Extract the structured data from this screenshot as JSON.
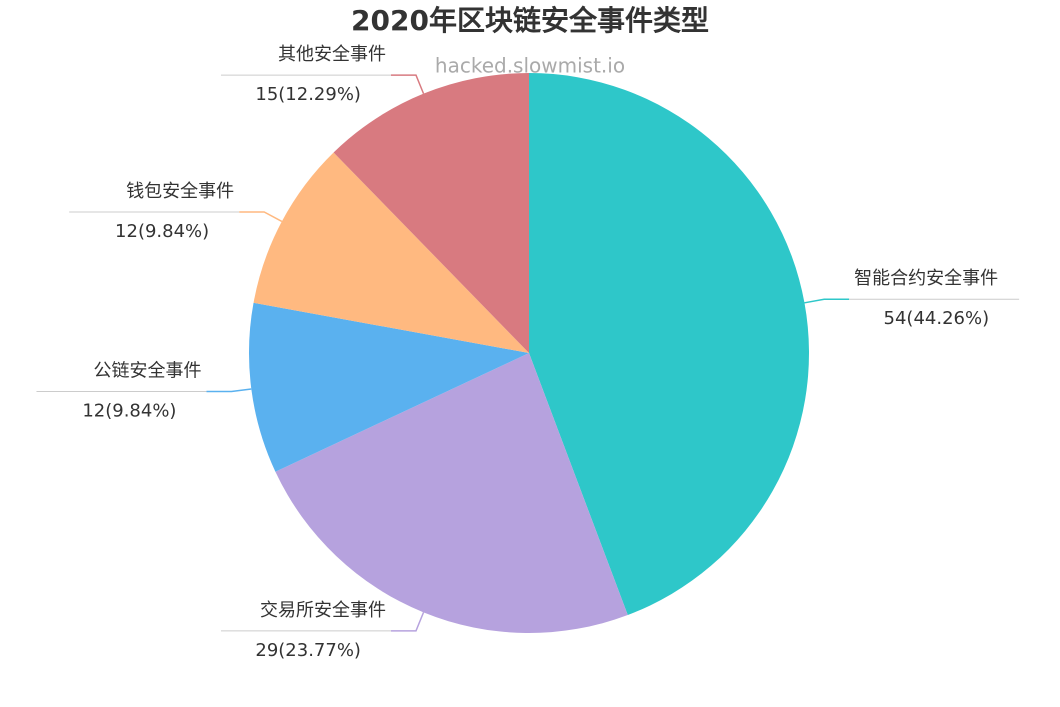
{
  "chart_data": {
    "type": "pie",
    "title": "2020年区块链安全事件类型",
    "subtitle": "hacked.slowmist.io",
    "categories": [
      "智能合约安全事件",
      "交易所安全事件",
      "公链安全事件",
      "钱包安全事件",
      "其他安全事件"
    ],
    "values": [
      54,
      29,
      12,
      12,
      15
    ],
    "value_labels": [
      "54(44.26%)",
      "29(23.77%)",
      "12(9.84%)",
      "12(9.84%)",
      "15(12.29%)"
    ],
    "colors": [
      "#2ec7c9",
      "#b6a2de",
      "#5ab1ef",
      "#ffb980",
      "#d87a80"
    ]
  }
}
